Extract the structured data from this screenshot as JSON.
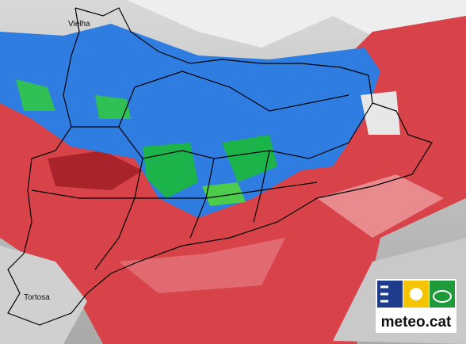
{
  "labels": [
    "Vielha",
    "Tortosa"
  ],
  "logo": {
    "text": "meteo.cat"
  }
}
